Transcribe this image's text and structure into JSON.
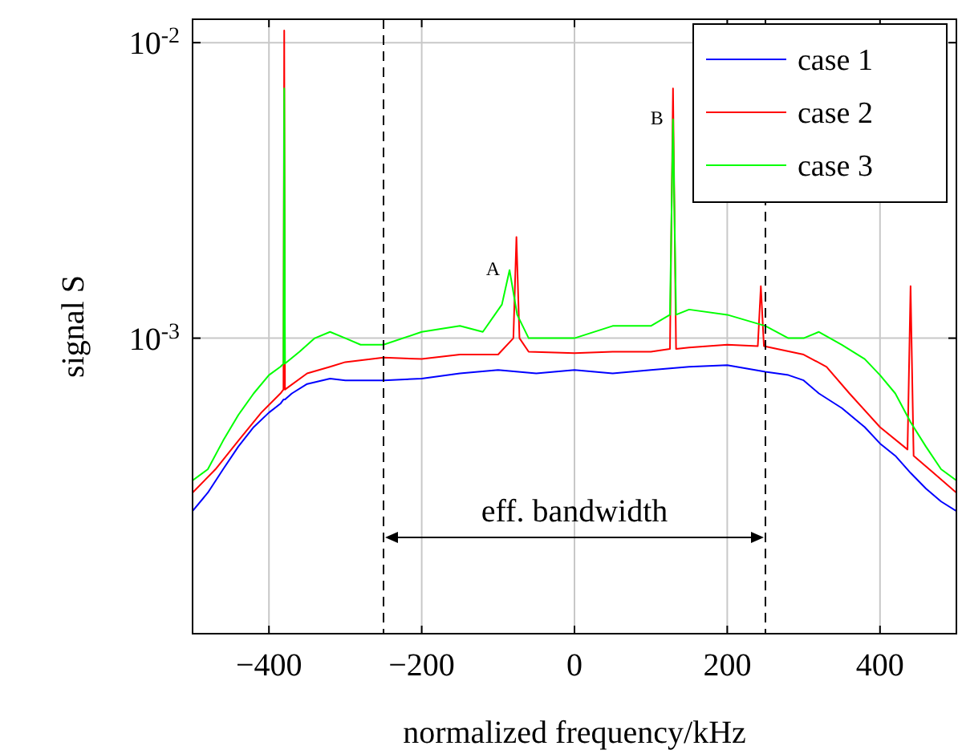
{
  "chart_data": {
    "type": "line",
    "xlabel": "normalized frequency/kHz",
    "ylabel": "signal S",
    "xlim": [
      -500,
      500
    ],
    "xticks": [
      {
        "value": -400,
        "label": "−400"
      },
      {
        "value": -200,
        "label": "−200"
      },
      0,
      200,
      400
    ],
    "ylim": [
      0.0001,
      0.012
    ],
    "yticks": [
      {
        "value": 0.01,
        "label": "10$^{-2}$"
      },
      {
        "value": 0.001,
        "label": "10$^{-3}$"
      }
    ],
    "log": "y",
    "grid": true,
    "legend": "top right",
    "line_style": "solid",
    "marker": "none",
    "ref_lines": [
      {
        "axis": "x",
        "value": -250,
        "line_style": "dashed",
        "color": "#000000"
      },
      {
        "axis": "x",
        "value": 250,
        "line_style": "dashed",
        "color": "#000000"
      }
    ],
    "annotations": [
      "eff. bandwidth",
      {
        "text": "A",
        "x": -85,
        "y": 0.0017
      },
      {
        "text": "B",
        "x": 129,
        "y": 0.0055
      }
    ],
    "series": [
      {
        "name": "case 1",
        "color": "#0000ff",
        "x": [
          -500,
          -480,
          -460,
          -440,
          -420,
          -400,
          -385,
          -381,
          -379,
          -370,
          -350,
          -320,
          -300,
          -250,
          -200,
          -150,
          -100,
          -50,
          0,
          50,
          100,
          150,
          200,
          250,
          280,
          300,
          320,
          350,
          380,
          400,
          420,
          440,
          460,
          480,
          500
        ],
        "values": [
          0.00026,
          0.0003,
          0.00036,
          0.00043,
          0.0005,
          0.00056,
          0.0006,
          0.00062,
          0.00062,
          0.00065,
          0.0007,
          0.00073,
          0.00072,
          0.00072,
          0.00073,
          0.00076,
          0.00078,
          0.00076,
          0.00078,
          0.00076,
          0.00078,
          0.0008,
          0.00081,
          0.00077,
          0.00075,
          0.00072,
          0.00065,
          0.00058,
          0.0005,
          0.00044,
          0.0004,
          0.00035,
          0.00031,
          0.00028,
          0.00026
        ]
      },
      {
        "name": "case 2",
        "color": "#ff0000",
        "x": [
          -500,
          -470,
          -440,
          -410,
          -385,
          -381,
          -380,
          -379,
          -350,
          -320,
          -300,
          -250,
          -200,
          -150,
          -100,
          -80,
          -76,
          -72,
          -60,
          0,
          50,
          100,
          125,
          129,
          133,
          150,
          200,
          240,
          244,
          248,
          300,
          330,
          360,
          400,
          436,
          440,
          444,
          470,
          500
        ],
        "values": [
          0.0003,
          0.00036,
          0.00045,
          0.00056,
          0.00065,
          0.00067,
          0.011,
          0.00067,
          0.00076,
          0.0008,
          0.00083,
          0.00086,
          0.00085,
          0.00088,
          0.00088,
          0.001,
          0.0022,
          0.001,
          0.0009,
          0.00089,
          0.0009,
          0.0009,
          0.00092,
          0.007,
          0.00092,
          0.00093,
          0.00095,
          0.00094,
          0.0015,
          0.00094,
          0.00088,
          0.0008,
          0.00065,
          0.0005,
          0.00042,
          0.0015,
          0.0004,
          0.00035,
          0.0003
        ]
      },
      {
        "name": "case 3",
        "color": "#00ff00",
        "x": [
          -500,
          -480,
          -460,
          -440,
          -420,
          -400,
          -385,
          -381,
          -380,
          -379,
          -360,
          -340,
          -320,
          -300,
          -280,
          -250,
          -200,
          -150,
          -120,
          -95,
          -85,
          -75,
          -60,
          -30,
          0,
          50,
          100,
          125,
          129,
          133,
          150,
          200,
          250,
          280,
          300,
          320,
          350,
          380,
          400,
          420,
          440,
          460,
          480,
          500
        ],
        "values": [
          0.00033,
          0.00036,
          0.00045,
          0.00055,
          0.00065,
          0.00075,
          0.0008,
          0.00082,
          0.007,
          0.00082,
          0.0009,
          0.001,
          0.00105,
          0.001,
          0.00095,
          0.00095,
          0.00105,
          0.0011,
          0.00105,
          0.0013,
          0.0017,
          0.0012,
          0.001,
          0.001,
          0.001,
          0.0011,
          0.0011,
          0.0012,
          0.0055,
          0.0012,
          0.00125,
          0.0012,
          0.0011,
          0.001,
          0.001,
          0.00105,
          0.00095,
          0.00085,
          0.00075,
          0.00065,
          0.00052,
          0.00043,
          0.00036,
          0.00033
        ]
      }
    ]
  }
}
